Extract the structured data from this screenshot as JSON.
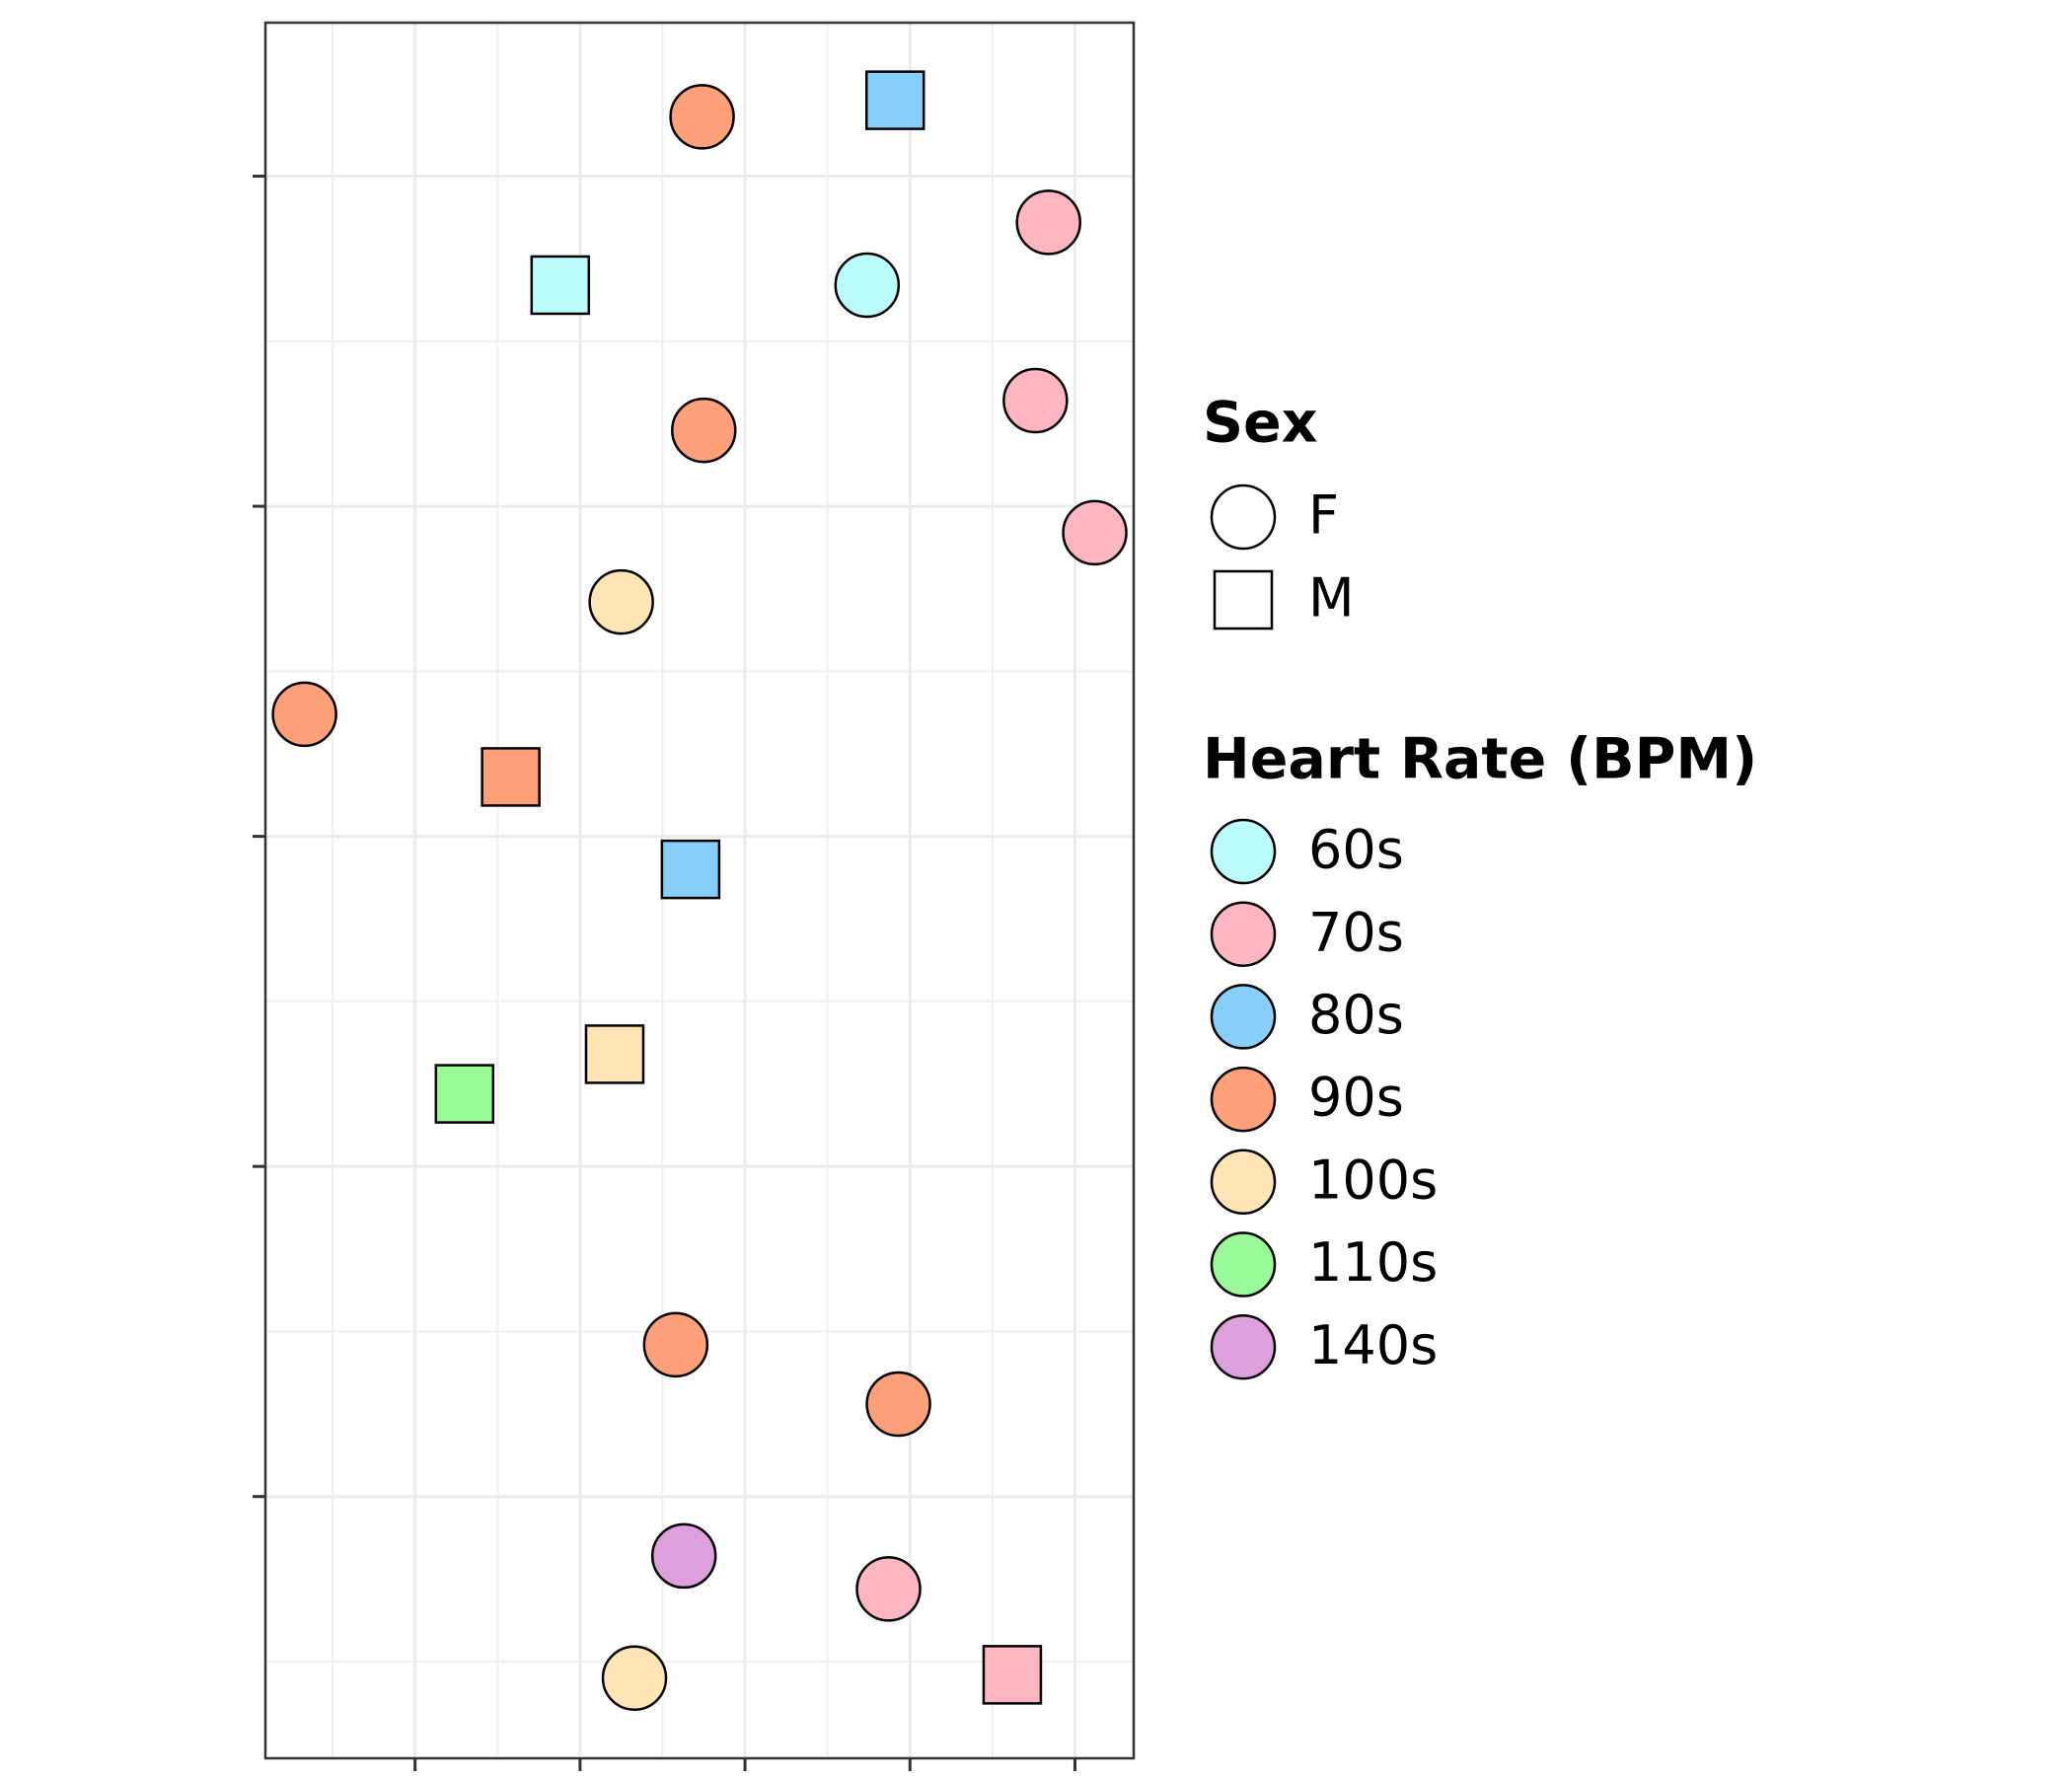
{
  "chart_data": {
    "type": "scatter",
    "xlim": [
      0.093,
      5.356
    ],
    "xticks": [
      1,
      2,
      3,
      4,
      5
    ],
    "ylim": [
      0.207,
      5.465
    ],
    "yticks": [
      1,
      2,
      3,
      4,
      5
    ],
    "grid": true,
    "points": {
      "x": [
        2.74,
        3.91,
        4.84,
        1.88,
        3.74,
        4.76,
        2.75,
        5.12,
        2.25,
        0.33,
        1.58,
        2.67,
        2.21,
        1.3,
        2.58,
        3.93,
        2.63,
        3.87,
        2.33,
        4.62
      ],
      "y": [
        5.18,
        5.23,
        4.86,
        4.67,
        4.67,
        4.32,
        4.23,
        3.92,
        3.71,
        3.37,
        3.18,
        2.9,
        2.34,
        2.22,
        1.46,
        1.28,
        0.82,
        0.72,
        0.45,
        0.46
      ],
      "sex": [
        "F",
        "M",
        "F",
        "M",
        "F",
        "F",
        "F",
        "F",
        "F",
        "F",
        "M",
        "M",
        "M",
        "M",
        "F",
        "F",
        "F",
        "F",
        "F",
        "M"
      ],
      "heart_rate": [
        "90s",
        "80s",
        "70s",
        "60s",
        "60s",
        "70s",
        "90s",
        "70s",
        "100s",
        "90s",
        "90s",
        "80s",
        "100s",
        "110s",
        "90s",
        "90s",
        "140s",
        "70s",
        "100s",
        "70s"
      ]
    },
    "shape_legend": {
      "title": "Sex",
      "labels": [
        "F",
        "M"
      ],
      "shapes": [
        "circle",
        "square"
      ]
    },
    "color_legend": {
      "title": "Heart Rate (BPM)",
      "labels": [
        "60s",
        "70s",
        "80s",
        "90s",
        "100s",
        "110s",
        "140s"
      ],
      "colors": [
        "#bbfdfd",
        "#ffb6c1",
        "#87cefa",
        "#ffa07a",
        "#ffe4b5",
        "#98fb98",
        "#dda0dd"
      ]
    }
  }
}
